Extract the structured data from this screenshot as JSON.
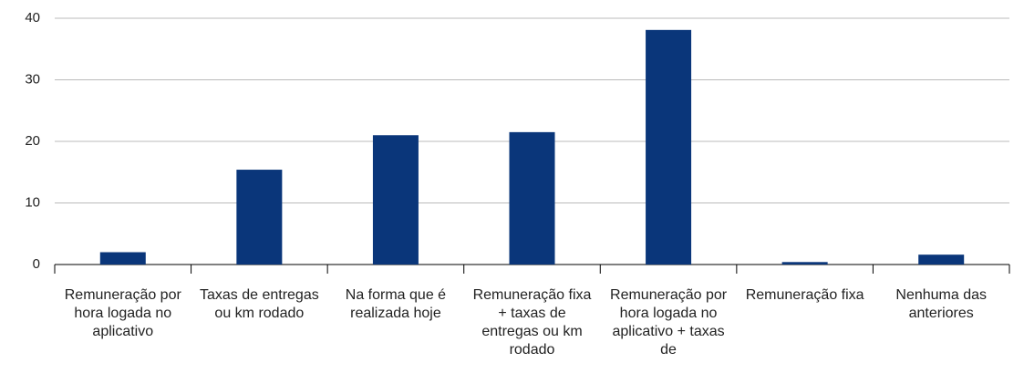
{
  "chart_data": {
    "type": "bar",
    "categories": [
      "Remuneração por hora logada no aplicativo",
      "Taxas de entregas ou km rodado",
      "Na forma que é realizada hoje",
      "Remuneração fixa + taxas de entregas ou km rodado",
      "Remuneração por hora logada no aplicativo + taxas de",
      "Remuneração fixa",
      "Nenhuma das anteriores"
    ],
    "values": [
      2,
      15.4,
      21,
      21.5,
      38.1,
      0.4,
      1.6
    ],
    "color": "#0a367a",
    "ylim": [
      0,
      40
    ],
    "yticks": [
      0,
      10,
      20,
      30,
      40
    ],
    "grid": true
  }
}
